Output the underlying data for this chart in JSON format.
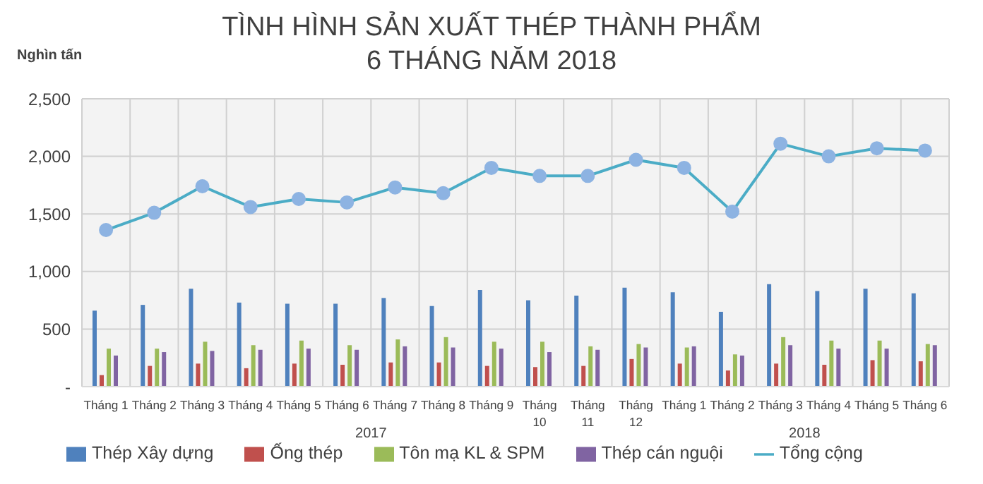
{
  "chart_data": {
    "type": "bar",
    "title": "TÌNH HÌNH SẢN XUẤT THÉP THÀNH PHẨM",
    "subtitle": "6 THÁNG NĂM 2018",
    "ylabel": "Nghìn tấn",
    "categories": [
      "Tháng 1",
      "Tháng 2",
      "Tháng 3",
      "Tháng 4",
      "Tháng 5",
      "Tháng 6",
      "Tháng 7",
      "Tháng 8",
      "Tháng 9",
      "Tháng 10",
      "Tháng 11",
      "Tháng 12",
      "Tháng 1",
      "Tháng 2",
      "Tháng 3",
      "Tháng 4",
      "Tháng 5",
      "Tháng 6"
    ],
    "annotations": [
      "2017",
      "2018"
    ],
    "series": [
      {
        "name": "Thép Xây dựng",
        "color": "#4f81bd",
        "values": [
          660,
          710,
          850,
          730,
          720,
          720,
          770,
          700,
          840,
          750,
          790,
          860,
          820,
          650,
          890,
          830,
          850,
          810
        ]
      },
      {
        "name": "Ống thép",
        "color": "#c0504d",
        "values": [
          100,
          180,
          200,
          160,
          200,
          190,
          210,
          210,
          180,
          170,
          180,
          240,
          200,
          140,
          200,
          190,
          230,
          220
        ]
      },
      {
        "name": "Tôn mạ KL & SPM",
        "color": "#9bbb59",
        "values": [
          330,
          330,
          390,
          360,
          400,
          360,
          410,
          430,
          390,
          390,
          350,
          370,
          340,
          280,
          430,
          400,
          400,
          370
        ]
      },
      {
        "name": "Thép cán nguội",
        "color": "#8064a2",
        "values": [
          270,
          300,
          310,
          320,
          330,
          320,
          350,
          340,
          330,
          300,
          320,
          340,
          350,
          270,
          360,
          330,
          330,
          360
        ]
      },
      {
        "name": "Tổng cộng",
        "type": "line",
        "color": "#4bacc6",
        "marker": "circle",
        "values": [
          1360,
          1510,
          1740,
          1560,
          1630,
          1600,
          1730,
          1680,
          1900,
          1830,
          1830,
          1970,
          1900,
          1520,
          2110,
          2000,
          2070,
          2050
        ]
      }
    ],
    "ylim": [
      0,
      2500
    ],
    "yticks": [
      {
        "value": 0,
        "label": "-"
      },
      500,
      {
        "value": 1000,
        "label": "1,000"
      },
      {
        "value": 1500,
        "label": "1,500"
      },
      {
        "value": 2000,
        "label": "2,000"
      },
      {
        "value": 2500,
        "label": "2,500"
      }
    ],
    "grid": true,
    "legend": "bottom"
  }
}
